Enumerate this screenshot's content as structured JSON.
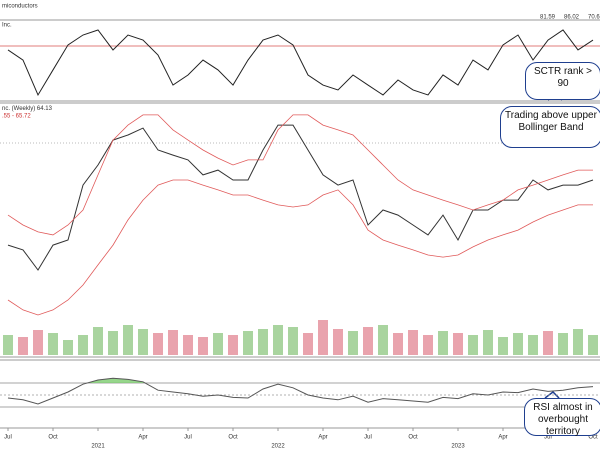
{
  "chart_data": [
    {
      "type": "line",
      "title": "miconductors",
      "label": "Inc.",
      "legend_values": [
        81.59,
        86.02,
        70.6
      ],
      "series": [
        {
          "color": "#222222",
          "values": [
            87.8,
            82.2,
            62.8,
            76.7,
            90.6,
            96.1,
            98.9,
            87.8,
            96.1,
            93.3,
            85,
            68.3,
            73.9,
            82.2,
            76.7,
            68.3,
            82.2,
            93.3,
            96.1,
            90.6,
            73.9,
            68.3,
            65.6,
            73.9,
            68.3,
            62.8,
            71.1,
            65.6,
            62.8,
            73.9,
            68.3,
            82.2,
            76.7,
            90.6,
            96.1,
            82.2,
            93.3,
            98.9,
            87.8,
            93.3
          ]
        }
      ],
      "ylim": [
        60,
        100
      ],
      "reference_lines": [
        {
          "value": 90,
          "color": "#d9534f"
        }
      ],
      "annotation": "SCTR rank > 90"
    },
    {
      "type": "line",
      "label": "nc. (Weekly)",
      "last": 64.13,
      "band_label": ".55 - 65.72",
      "series": [
        {
          "color": "#333333",
          "values": [
            48.3,
            46.7,
            40,
            48.3,
            50,
            68.3,
            75,
            83.3,
            85,
            87.3,
            80,
            78.3,
            76.7,
            71.7,
            73.3,
            70,
            70,
            80,
            88.3,
            88.3,
            80,
            71.7,
            68.3,
            70,
            55,
            60,
            58.3,
            55,
            51.7,
            58.3,
            50,
            60,
            60,
            63.3,
            63.3,
            70,
            66.7,
            68.3,
            68.3,
            70
          ]
        },
        {
          "color": "#e05a5a",
          "values": [
            58.3,
            55,
            52.7,
            51.7,
            55,
            60,
            71.7,
            83.3,
            88.3,
            91.7,
            91.7,
            86.7,
            83.3,
            80,
            77.3,
            75,
            76.7,
            76.7,
            86.7,
            91.7,
            91.7,
            88.3,
            86.7,
            85,
            80,
            75,
            70,
            66.7,
            65,
            63.3,
            61.7,
            60,
            61.7,
            63.3,
            66.7,
            68.3,
            70,
            71.7,
            73.3,
            73.3
          ]
        },
        {
          "color": "#e05a5a",
          "values": [
            30,
            26.7,
            25,
            26.7,
            30,
            35,
            41.7,
            48.3,
            56.7,
            63.3,
            68.3,
            70,
            70,
            68.3,
            66.7,
            65,
            65,
            63.3,
            61.7,
            61,
            61.7,
            65,
            66.7,
            61.7,
            53.3,
            50,
            48.3,
            46.7,
            45,
            44.3,
            45,
            47.7,
            50,
            51.7,
            53.3,
            56,
            58.3,
            60,
            61.7,
            61.7
          ]
        }
      ],
      "ylim": [
        20,
        95
      ],
      "annotation": "Trading above upper Bollinger Band"
    },
    {
      "type": "bar",
      "up_color": "#a9d49f",
      "down_color": "#e9a3ad",
      "values": [
        20,
        18,
        25,
        22,
        15,
        20,
        28,
        24,
        30,
        26,
        22,
        25,
        20,
        18,
        22,
        20,
        24,
        26,
        30,
        28,
        22,
        35,
        26,
        24,
        28,
        30,
        22,
        25,
        20,
        24,
        22,
        20,
        25,
        18,
        22,
        20,
        24,
        22,
        26,
        20
      ],
      "ylim": [
        0,
        50
      ]
    },
    {
      "type": "line",
      "overbought_fill": "#7ccc6e",
      "categories": [
        "Jul",
        null,
        null,
        "Oct",
        null,
        null,
        "2021",
        null,
        null,
        "Apr",
        null,
        null,
        "Jul",
        null,
        null,
        "Oct",
        null,
        null,
        "2022",
        null,
        null,
        "Apr",
        null,
        null,
        "Jul",
        null,
        null,
        "Oct",
        null,
        null,
        "2023",
        null,
        null,
        "Apr",
        null,
        null,
        "Jul",
        null,
        null,
        "Oct"
      ],
      "series": [
        {
          "color": "#555555",
          "values": [
            45,
            42,
            35,
            45,
            55,
            68,
            75,
            78,
            76,
            72,
            58,
            55,
            52,
            48,
            50,
            46,
            45,
            60,
            68,
            62,
            50,
            45,
            42,
            48,
            38,
            44,
            42,
            40,
            38,
            46,
            44,
            52,
            50,
            55,
            54,
            60,
            56,
            58,
            62,
            64
          ]
        }
      ],
      "ylim": [
        0,
        100
      ],
      "reference_lines": [
        {
          "value": 70,
          "color": "#888888"
        },
        {
          "value": 50,
          "color": "#999999",
          "dash": true
        },
        {
          "value": 30,
          "color": "#888888"
        }
      ],
      "annotation": "RSI almost in overbought territory"
    }
  ]
}
